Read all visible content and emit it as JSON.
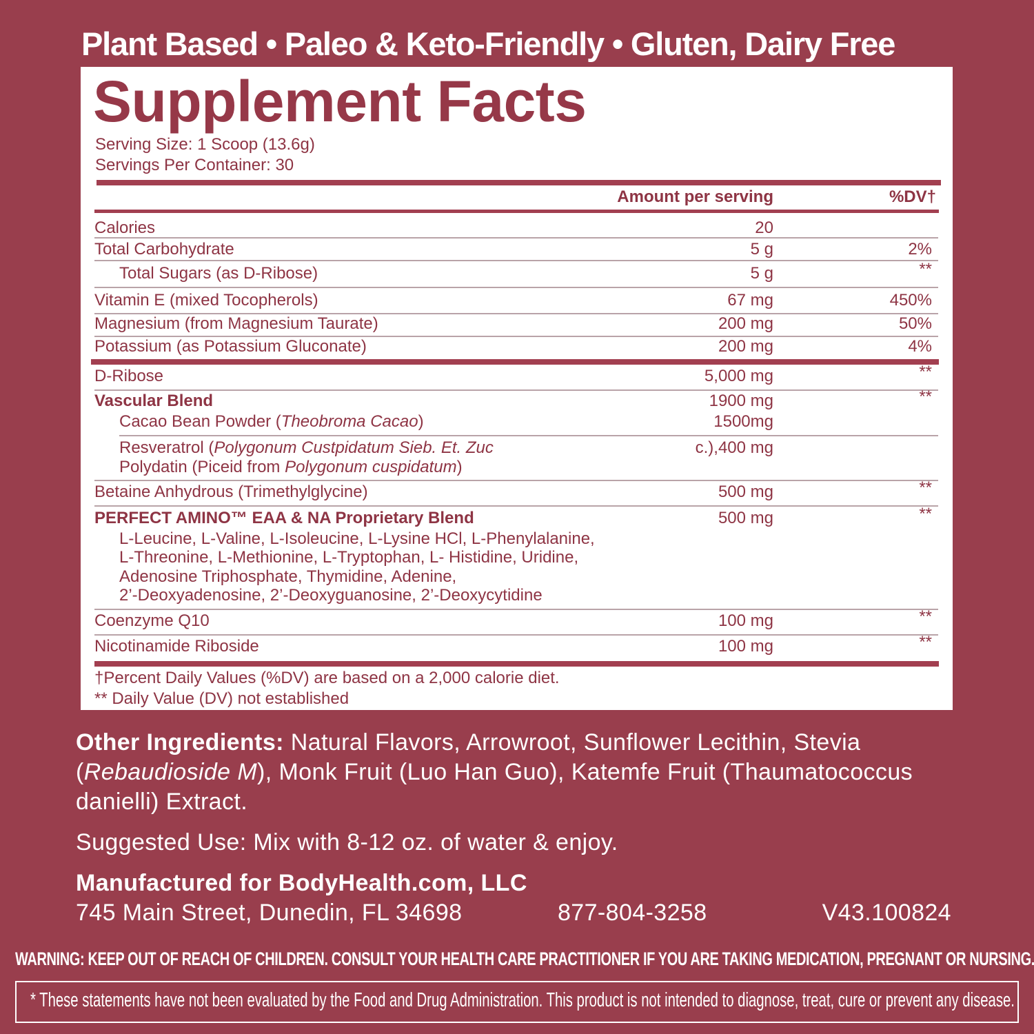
{
  "headline": "Plant Based • Paleo & Keto-Friendly • Gluten, Dairy Free",
  "facts": {
    "title": "Supplement Facts",
    "serving_size": "Serving Size: 1 Scoop (13.6g)",
    "servings_per_container": "Servings Per Container: 30",
    "header_amount": "Amount per serving",
    "header_dv": "%DV†",
    "rows": [
      {
        "name": "Calories",
        "amount": "20",
        "dv": ""
      },
      {
        "name": "Total Carbohydrate",
        "amount": "5 g",
        "dv": "2%"
      },
      {
        "name": "Total Sugars (as D-Ribose)",
        "amount": "5 g",
        "dv": "**"
      },
      {
        "name": "Vitamin E (mixed Tocopherols)",
        "amount": "67 mg",
        "dv": "450%"
      },
      {
        "name": "Magnesium (from Magnesium Taurate)",
        "amount": "200 mg",
        "dv": "50%"
      },
      {
        "name": "Potassium (as Potassium Gluconate)",
        "amount": "200 mg",
        "dv": "4%"
      },
      {
        "name": "D-Ribose",
        "amount": "5,000 mg",
        "dv": "**"
      },
      {
        "name": "Vascular Blend",
        "amount": "1900 mg",
        "dv": "**"
      },
      {
        "name": "Cacao Bean Powder (",
        "latin": "Theobroma Cacao",
        "close": ")",
        "amount": "1500mg"
      },
      {
        "name": "Resveratrol (",
        "latin": "Polygonum Custpidatum Sieb. Et. Zuc",
        "amount": "c.),400 mg"
      },
      {
        "name": "Polydatin (Piceid from ",
        "latin": "Polygonum cuspidatum",
        "close": ")"
      },
      {
        "name": "Betaine Anhydrous (Trimethylglycine)",
        "amount": "500 mg",
        "dv": "**"
      },
      {
        "name": "PERFECT AMINO™ EAA & NA Proprietary Blend",
        "amount": "500 mg",
        "dv": "**"
      },
      {
        "name": "Coenzyme Q10",
        "amount": "100 mg",
        "dv": "**"
      },
      {
        "name": "Nicotinamide Riboside",
        "amount": "100 mg",
        "dv": "**"
      }
    ],
    "amino_lines": [
      "L-Leucine, L-Valine, L-Isoleucine, L-Lysine HCl, L-Phenylalanine,",
      "L-Threonine, L-Methionine, L-Tryptophan, L- Histidine, Uridine,",
      "Adenosine Triphosphate, Thymidine, Adenine,",
      "2’-Deoxyadenosine, 2’-Deoxyguanosine, 2’-Deoxycytidine"
    ],
    "footnote_1": "†Percent Daily Values (%DV) are based on a 2,000 calorie diet.",
    "footnote_2": "** Daily Value (DV) not established"
  },
  "other_ingredients": {
    "label": "Other Ingredients:",
    "text_1": " Natural Flavors, Arrowroot, Sunflower Lecithin, Stevia (",
    "italic": "Rebaudioside M",
    "text_2": "), Monk Fruit (Luo Han Guo), Katemfe Fruit (Thaumatococcus danielli) Extract."
  },
  "suggested_use": "Suggested Use: Mix with  8-12 oz. of water & enjoy.",
  "manufacturer": {
    "name": "Manufactured for BodyHealth.com, LLC",
    "address": "745 Main Street, Dunedin, FL 34698",
    "phone": "877-804-3258",
    "version": "V43.100824"
  },
  "warning": "WARNING: KEEP OUT OF REACH OF CHILDREN. CONSULT YOUR HEALTH CARE PRACTITIONER IF YOU ARE TAKING MEDICATION, PREGNANT OR NURSING.",
  "disclaimer": "* These statements have not been evaluated by the Food and Drug Administration. This product is not intended to diagnose, treat, cure or prevent any disease.",
  "colors": {
    "background": "#993e4d",
    "label_text": "#8e3444",
    "panel": "#ffffff"
  }
}
